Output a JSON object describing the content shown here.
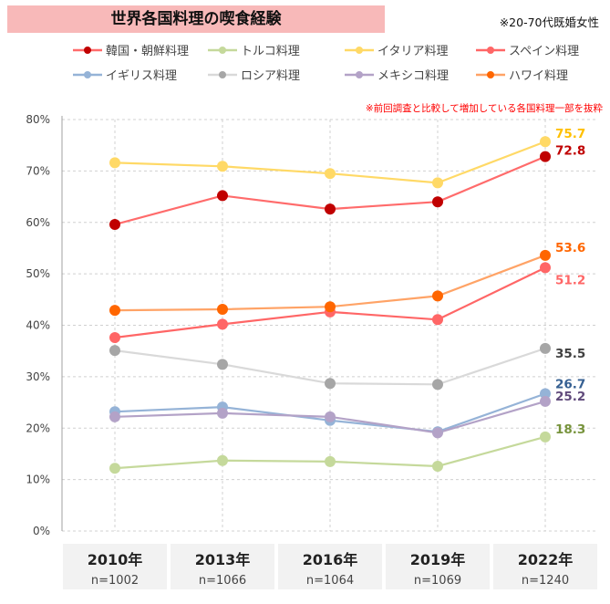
{
  "title": "世界各国料理の喫食経験",
  "note": "※20-70代既婚女性",
  "subnote": "※前回調査と比較して増加している各国料理一部を抜粋",
  "chart_data": {
    "type": "line",
    "categories": [
      "2010年",
      "2013年",
      "2016年",
      "2019年",
      "2022年"
    ],
    "sample_sizes": [
      "n=1002",
      "n=1066",
      "n=1064",
      "n=1069",
      "n=1240"
    ],
    "ylim": [
      0,
      80
    ],
    "yticks": [
      "0%",
      "10%",
      "20%",
      "30%",
      "40%",
      "50%",
      "60%",
      "70%",
      "80%"
    ],
    "grid": true,
    "legend_position": "top",
    "series": [
      {
        "name": "韓国・朝鮮料理",
        "line": "#ff6b6b",
        "marker": "#c00000",
        "label_color": "#c00000",
        "values": [
          59.6,
          65.2,
          62.6,
          64.0,
          72.8
        ],
        "end_label": "72.8"
      },
      {
        "name": "トルコ料理",
        "line": "#c5d99b",
        "marker": "#c5d99b",
        "label_color": "#77933c",
        "values": [
          12.2,
          13.7,
          13.5,
          12.6,
          18.3
        ],
        "end_label": "18.3"
      },
      {
        "name": "イタリア料理",
        "line": "#ffd966",
        "marker": "#ffd966",
        "label_color": "#ffc000",
        "values": [
          71.6,
          70.9,
          69.5,
          67.7,
          75.7
        ],
        "end_label": "75.7"
      },
      {
        "name": "スペイン料理",
        "line": "#ff6666",
        "marker": "#ff6666",
        "label_color": "#ff6666",
        "values": [
          37.6,
          40.2,
          42.6,
          41.1,
          51.2
        ],
        "end_label": "51.2"
      },
      {
        "name": "イギリス料理",
        "line": "#95b3d7",
        "marker": "#95b3d7",
        "label_color": "#366092",
        "values": [
          23.2,
          24.1,
          21.5,
          19.3,
          26.7
        ],
        "end_label": "26.7"
      },
      {
        "name": "ロシア料理",
        "line": "#d9d9d9",
        "marker": "#a6a6a6",
        "label_color": "#404040",
        "values": [
          35.1,
          32.4,
          28.7,
          28.5,
          35.5
        ],
        "end_label": "35.5"
      },
      {
        "name": "メキシコ料理",
        "line": "#b3a2c7",
        "marker": "#b3a2c7",
        "label_color": "#604a7b",
        "values": [
          22.2,
          22.9,
          22.2,
          19.1,
          25.2
        ],
        "end_label": "25.2"
      },
      {
        "name": "ハワイ料理",
        "line": "#ffa366",
        "marker": "#ff6600",
        "label_color": "#ff6600",
        "values": [
          42.9,
          43.1,
          43.6,
          45.7,
          53.6
        ],
        "end_label": "53.6"
      }
    ]
  }
}
